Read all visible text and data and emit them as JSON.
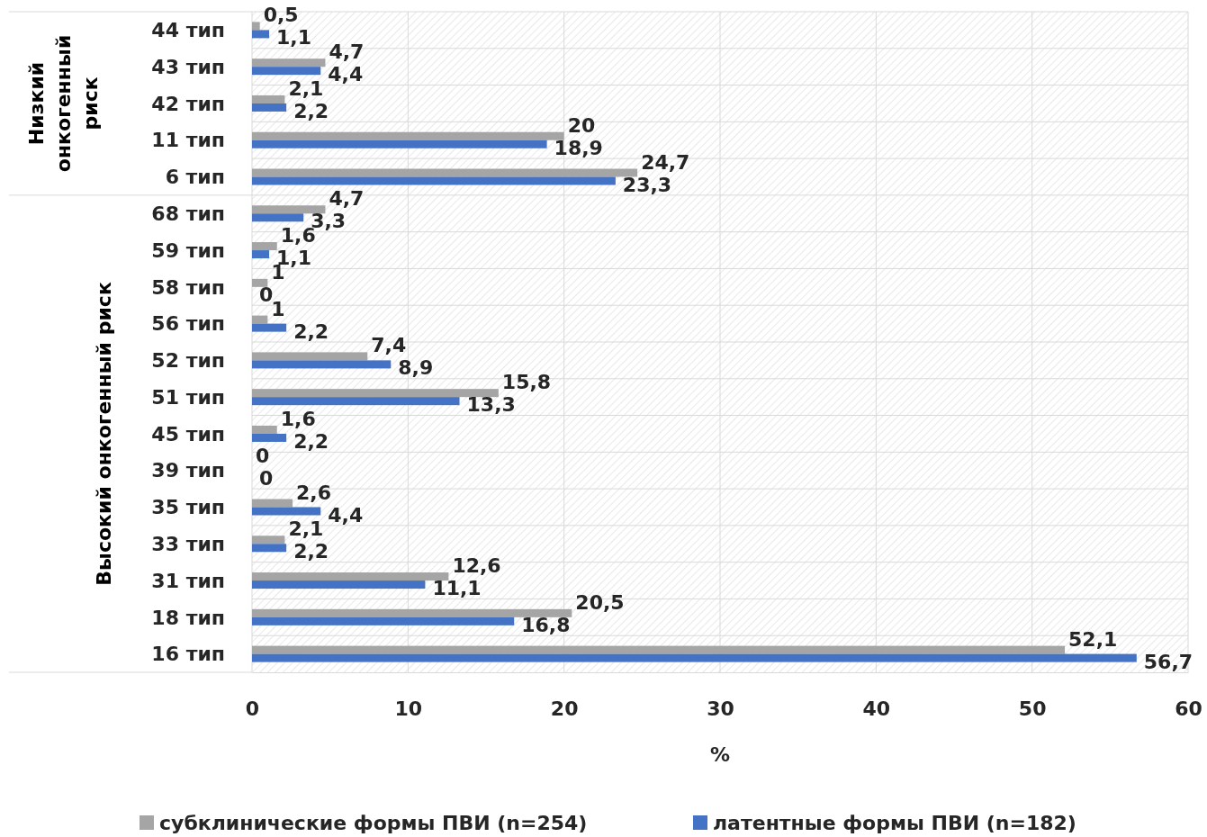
{
  "chart_data": {
    "type": "bar",
    "orientation": "horizontal",
    "xlabel": "%",
    "categories": [
      "44 тип",
      "43 тип",
      "42 тип",
      "11 тип",
      "6 тип",
      "68 тип",
      "59 тип",
      "58 тип",
      "56 тип",
      "52 тип",
      "51 тип",
      "45 тип",
      "39 тип",
      "35 тип",
      "33 тип",
      "31 тип",
      "18 тип",
      "16 тип"
    ],
    "series": [
      {
        "name": "субклинические формы ПВИ (n=254)",
        "color": "#a5a5a5",
        "values": [
          0.5,
          4.7,
          2.1,
          20,
          24.7,
          4.7,
          1.6,
          1,
          1,
          7.4,
          15.8,
          1.6,
          0,
          2.6,
          2.1,
          12.6,
          20.5,
          52.1
        ],
        "value_labels": [
          "0,5",
          "4,7",
          "2,1",
          "20",
          "24,7",
          "4,7",
          "1,6",
          "1",
          "1",
          "7,4",
          "15,8",
          "1,6",
          "0",
          "2,6",
          "2,1",
          "12,6",
          "20,5",
          "52,1"
        ]
      },
      {
        "name": "латентные формы ПВИ (n=182)",
        "color": "#4472c4",
        "values": [
          1.1,
          4.4,
          2.2,
          18.9,
          23.3,
          3.3,
          1.1,
          0,
          2.2,
          8.9,
          13.3,
          2.2,
          0,
          4.4,
          2.2,
          11.1,
          16.8,
          56.7
        ],
        "value_labels": [
          "1,1",
          "4,4",
          "2,2",
          "18,9",
          "23,3",
          "3,3",
          "1,1",
          "0",
          "2,2",
          "8,9",
          "13,3",
          "2,2",
          "0",
          "4,4",
          "2,2",
          "11,1",
          "16,8",
          "56,7"
        ]
      }
    ],
    "xlim": [
      0,
      60
    ],
    "xticks": [
      0,
      10,
      20,
      30,
      40,
      50,
      60
    ],
    "grid": "x",
    "legend": "bottom",
    "annotations": [
      "Низкий онкогенный риск",
      "Высокий онкогенный риск"
    ]
  }
}
